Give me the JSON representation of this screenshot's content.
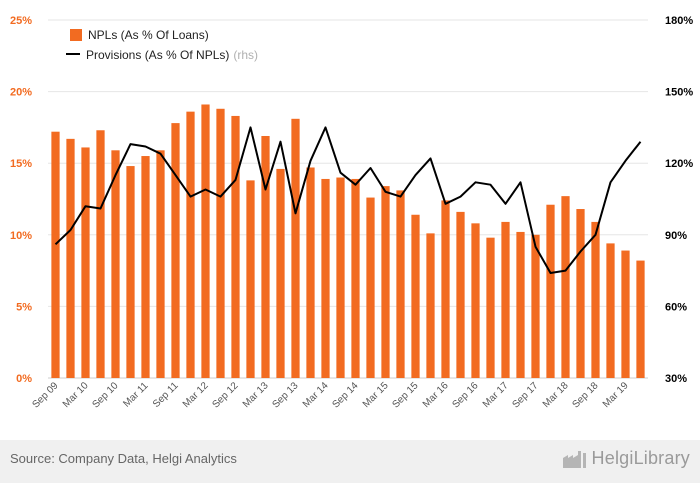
{
  "chart_data": {
    "type": "bar",
    "categories": [
      "Sep 09",
      "Dec 09",
      "Mar 10",
      "Jun 10",
      "Sep 10",
      "Dec 10",
      "Mar 11",
      "Jun 11",
      "Sep 11",
      "Dec 11",
      "Mar 12",
      "Jun 12",
      "Sep 12",
      "Dec 12",
      "Mar 13",
      "Jun 13",
      "Sep 13",
      "Dec 13",
      "Mar 14",
      "Jun 14",
      "Sep 14",
      "Dec 14",
      "Mar 15",
      "Jun 15",
      "Sep 15",
      "Dec 15",
      "Mar 16",
      "Jun 16",
      "Sep 16",
      "Dec 16",
      "Mar 17",
      "Jun 17",
      "Sep 17",
      "Dec 17",
      "Mar 18",
      "Jun 18",
      "Sep 18",
      "Dec 18",
      "Mar 19",
      "Jun 19"
    ],
    "x_tick_labels": [
      "Sep 09",
      "Mar 10",
      "Sep 10",
      "Mar 11",
      "Sep 11",
      "Mar 12",
      "Sep 12",
      "Mar 13",
      "Sep 13",
      "Mar 14",
      "Sep 14",
      "Mar 15",
      "Sep 15",
      "Mar 16",
      "Sep 16",
      "Mar 17",
      "Sep 17",
      "Mar 18",
      "Sep 18",
      "Mar 19"
    ],
    "series": [
      {
        "name": "NPLs (As % Of Loans)",
        "type": "bar",
        "axis": "left",
        "color": "#f26b21",
        "values": [
          17.2,
          16.7,
          16.1,
          17.3,
          15.9,
          14.8,
          15.5,
          15.9,
          17.8,
          18.6,
          19.1,
          18.8,
          18.3,
          13.8,
          16.9,
          14.6,
          18.1,
          14.7,
          13.9,
          14.0,
          13.9,
          12.6,
          13.4,
          13.1,
          11.4,
          10.1,
          12.4,
          11.6,
          10.8,
          9.8,
          10.9,
          10.2,
          10.0,
          12.1,
          12.7,
          11.8,
          10.9,
          9.4,
          8.9,
          8.2
        ]
      },
      {
        "name": "Provisions (As % Of NPLs)",
        "name_suffix": "(rhs)",
        "type": "line",
        "axis": "right",
        "color": "#000000",
        "values": [
          86,
          92,
          102,
          101,
          115,
          128,
          127,
          124,
          115,
          106,
          109,
          106,
          113,
          135,
          109,
          129,
          99,
          121,
          135,
          116,
          111,
          118,
          108,
          106,
          115,
          122,
          103,
          106,
          112,
          111,
          103,
          112,
          85,
          74,
          75,
          83,
          90,
          112,
          121,
          129
        ]
      }
    ],
    "y_left": {
      "ticks": [
        "0%",
        "5%",
        "10%",
        "15%",
        "20%",
        "25%"
      ],
      "range": [
        0,
        25
      ]
    },
    "y_right": {
      "ticks": [
        "30%",
        "60%",
        "90%",
        "120%",
        "150%",
        "180%"
      ],
      "range": [
        30,
        180
      ]
    },
    "legend_position": "top-left",
    "grid": true
  },
  "footer": {
    "source": "Source: Company Data, Helgi Analytics",
    "brand": "HelgiLibrary"
  },
  "colors": {
    "bar": "#f26b21",
    "line": "#000000",
    "grid": "#e6e6e6",
    "footer_bg": "#f0f0f0"
  }
}
